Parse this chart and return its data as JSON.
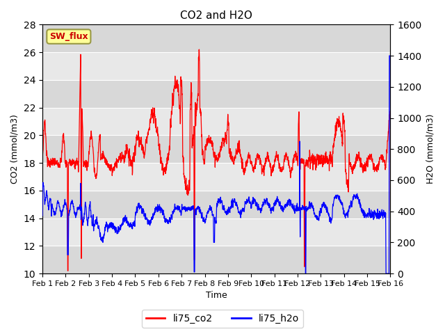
{
  "title": "CO2 and H2O",
  "xlabel": "Time",
  "ylabel_left": "CO2 (mmol/m3)",
  "ylabel_right": "H2O (mmol/m3)",
  "ylim_left": [
    10,
    28
  ],
  "ylim_right": [
    0,
    1600
  ],
  "yticks_left": [
    10,
    12,
    14,
    16,
    18,
    20,
    22,
    24,
    26,
    28
  ],
  "yticks_right": [
    0,
    200,
    400,
    600,
    800,
    1000,
    1200,
    1400,
    1600
  ],
  "color_co2": "#ff0000",
  "color_h2o": "#0000ff",
  "color_swflux_bg": "#ffff99",
  "color_swflux_border": "#999944",
  "color_swflux_text": "#cc0000",
  "background_color": "#e8e8e8",
  "legend_co2": "li75_co2",
  "legend_h2o": "li75_h2o",
  "swflux_label": "SW_flux",
  "n_points": 3000
}
